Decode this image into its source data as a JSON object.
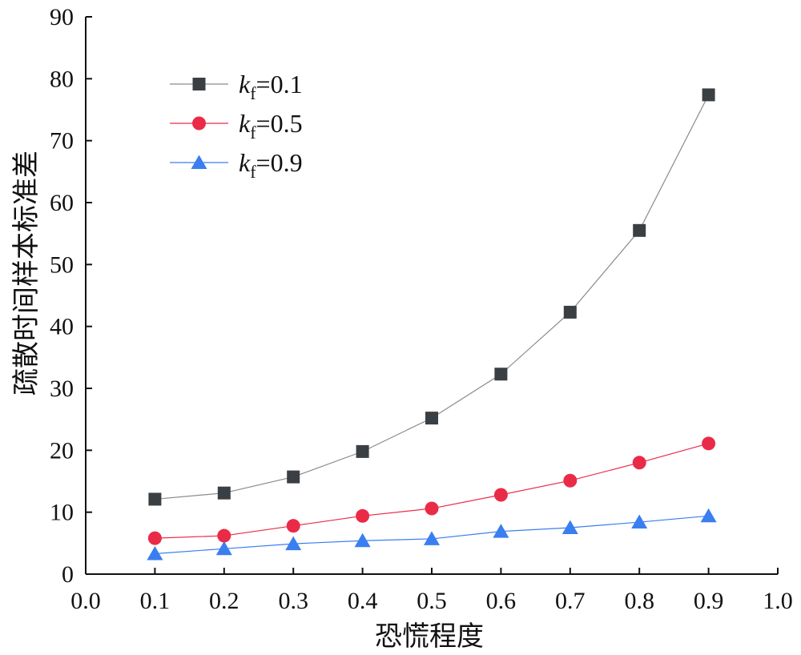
{
  "chart_data": {
    "type": "line",
    "title": "",
    "xlabel": "恐慌程度",
    "ylabel": "疏散时间样本标准差",
    "xlim": [
      0.0,
      1.0
    ],
    "ylim": [
      0,
      90
    ],
    "xticks": [
      "0.0",
      "0.1",
      "0.2",
      "0.3",
      "0.4",
      "0.5",
      "0.6",
      "0.7",
      "0.8",
      "0.9",
      "1.0"
    ],
    "yticks": [
      "0",
      "10",
      "20",
      "30",
      "40",
      "50",
      "60",
      "70",
      "80",
      "90"
    ],
    "x": [
      0.1,
      0.2,
      0.3,
      0.4,
      0.5,
      0.6,
      0.7,
      0.8,
      0.9
    ],
    "legend_position": "top-left",
    "grid": false,
    "series": [
      {
        "name_var": "k",
        "name_sub": "f",
        "name_value": "=0.1",
        "marker": "square",
        "color": "#3a3f44",
        "line_color": "#8a8a8a",
        "values": [
          12.1,
          13.1,
          15.7,
          19.8,
          25.2,
          32.3,
          42.3,
          55.5,
          77.4
        ]
      },
      {
        "name_var": "k",
        "name_sub": "f",
        "name_value": "=0.5",
        "marker": "circle",
        "color": "#ea2b48",
        "line_color": "#ea2b48",
        "values": [
          5.8,
          6.2,
          7.8,
          9.4,
          10.6,
          12.8,
          15.1,
          18.0,
          21.1
        ]
      },
      {
        "name_var": "k",
        "name_sub": "f",
        "name_value": "=0.9",
        "marker": "triangle",
        "color": "#3a7ef0",
        "line_color": "#3a7ef0",
        "values": [
          3.3,
          4.1,
          4.9,
          5.4,
          5.7,
          6.9,
          7.5,
          8.4,
          9.4
        ]
      }
    ]
  }
}
